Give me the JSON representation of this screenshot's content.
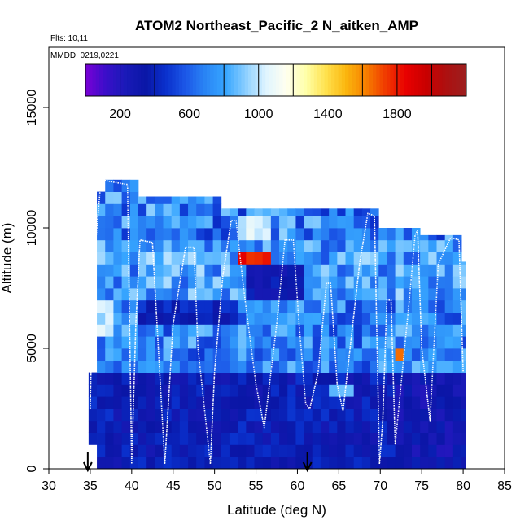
{
  "chart_data": {
    "type": "heatmap",
    "title": "ATOM2 Northeast_Pacific_2 N_aitken_AMP",
    "annotations": {
      "flights": "Flts: 10,11",
      "dates": "MMDD: 0219,0221"
    },
    "xlabel": "Latitude (deg N)",
    "ylabel": "Altitude (m)",
    "xlim": [
      30,
      85
    ],
    "ylim": [
      0,
      17500
    ],
    "x_ticks": [
      30,
      35,
      40,
      45,
      50,
      55,
      60,
      65,
      70,
      75,
      80,
      85
    ],
    "y_ticks": [
      0,
      5000,
      10000,
      15000
    ],
    "colorbar": {
      "range": [
        0,
        2200
      ],
      "tick_values": [
        200,
        600,
        1000,
        1400,
        1800
      ],
      "tick_labels": [
        "200",
        "600",
        "1000",
        "1400",
        "1800"
      ],
      "separators": [
        200,
        400,
        800,
        1000,
        1200,
        1600,
        1800,
        2000
      ],
      "colors": [
        "#7a00d6",
        "#3a0ec9",
        "#1a1ab8",
        "#0a16a6",
        "#0a30cc",
        "#1c58e8",
        "#2a86f5",
        "#37a6ff",
        "#8ccfff",
        "#dff4ff",
        "#fffff0",
        "#ffffa8",
        "#ffe14d",
        "#fbb60e",
        "#f77f00",
        "#f03800",
        "#e80000",
        "#c80000",
        "#ad1010",
        "#9b1f1f"
      ]
    },
    "grid": false,
    "legend": "colorbar at top inside plot",
    "region_of_data": {
      "lat_range": [
        34.8,
        80.3
      ],
      "alt_range": [
        0,
        12000
      ]
    },
    "hotspot": {
      "lat_range": [
        52.5,
        56
      ],
      "alt_range": [
        8500,
        9000
      ],
      "value": 1800
    },
    "flight_track": {
      "lat": [
        35.0,
        35.3,
        36.0,
        36.3,
        37.8,
        39.5,
        40.0,
        40.5,
        41.0,
        42.5,
        44.0,
        45.0,
        46.5,
        47.5,
        48.0,
        49.5,
        50.0,
        51.0,
        52.0,
        52.6,
        53.5,
        55.0,
        56.0,
        57.5,
        58.5,
        59.5,
        60.2,
        61.0,
        61.5,
        62.5,
        63.5,
        64.0,
        64.8,
        65.5,
        67.5,
        68.5,
        69.3,
        69.9,
        70.3,
        70.8,
        71.3,
        71.8,
        73.5,
        74.2,
        74.5,
        75.0,
        76.0,
        77.0,
        78.5,
        79.5,
        80.0
      ],
      "alt": [
        2500,
        8000,
        10800,
        12000,
        11900,
        11800,
        200,
        6000,
        9500,
        9400,
        200,
        6000,
        9200,
        9200,
        5000,
        200,
        4000,
        8000,
        10300,
        10300,
        7500,
        3500,
        1700,
        6000,
        9500,
        9500,
        6000,
        2700,
        2500,
        4000,
        7700,
        7700,
        3500,
        2400,
        8500,
        10600,
        10500,
        200,
        2000,
        7000,
        7000,
        1000,
        7000,
        9700,
        9900,
        5000,
        2000,
        8500,
        9600,
        9500,
        4000
      ]
    },
    "markers": [
      {
        "lat": 34.7,
        "symbol": "down-arrow",
        "description": "flight start"
      },
      {
        "lat": 61.2,
        "symbol": "down-arrow",
        "description": "flight end"
      }
    ]
  }
}
